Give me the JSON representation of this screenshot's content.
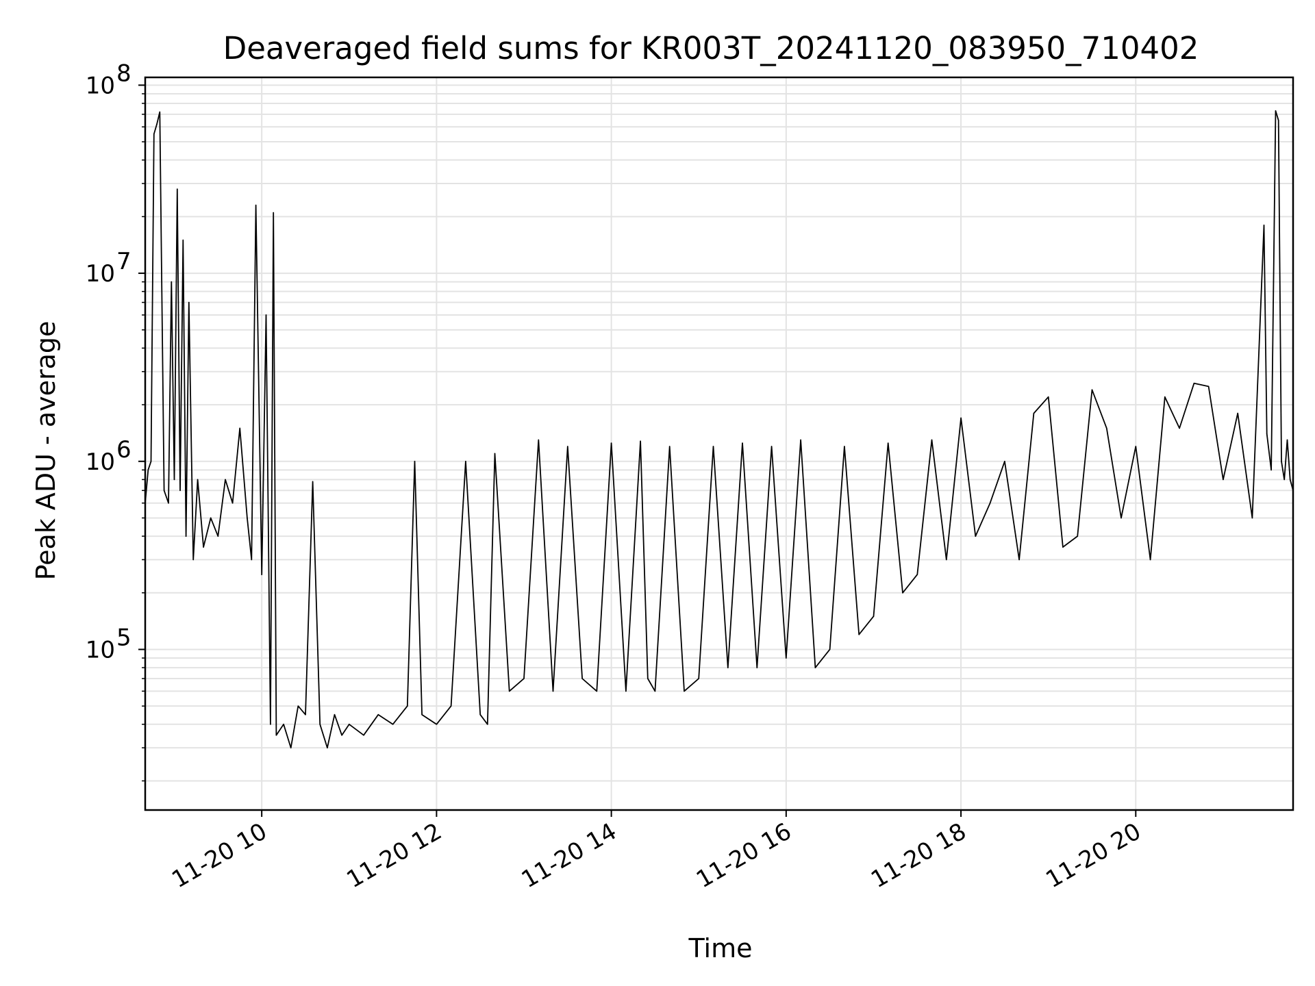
{
  "chart_data": {
    "type": "line",
    "title": "Deaveraged field sums for KR003T_20241120_083950_710402",
    "xlabel": "Time",
    "ylabel": "Peak ADU - average",
    "yscale": "log",
    "ylim": [
      14000,
      110000000
    ],
    "xlim": [
      "2024-11-20 08:40",
      "2024-11-20 21:48"
    ],
    "grid": true,
    "line_color": "#000000",
    "grid_color": "#e3e3e3",
    "x_ticks": [
      {
        "t": "2024-11-20 10:00",
        "label": "11-20 10"
      },
      {
        "t": "2024-11-20 12:00",
        "label": "11-20 12"
      },
      {
        "t": "2024-11-20 14:00",
        "label": "11-20 14"
      },
      {
        "t": "2024-11-20 16:00",
        "label": "11-20 16"
      },
      {
        "t": "2024-11-20 18:00",
        "label": "11-20 18"
      },
      {
        "t": "2024-11-20 20:00",
        "label": "11-20 20"
      }
    ],
    "y_ticks": [
      {
        "value": 100000,
        "label": "10",
        "exp": "5"
      },
      {
        "value": 1000000,
        "label": "10",
        "exp": "6"
      },
      {
        "value": 10000000,
        "label": "10",
        "exp": "7"
      },
      {
        "value": 100000000,
        "label": "10",
        "exp": "8"
      }
    ],
    "series": [
      {
        "x": [
          "2024-11-20 08:40",
          "2024-11-20 08:42",
          "2024-11-20 08:44",
          "2024-11-20 08:46",
          "2024-11-20 08:48",
          "2024-11-20 08:50",
          "2024-11-20 08:53",
          "2024-11-20 08:56",
          "2024-11-20 08:58",
          "2024-11-20 09:00",
          "2024-11-20 09:02",
          "2024-11-20 09:04",
          "2024-11-20 09:06",
          "2024-11-20 09:08",
          "2024-11-20 09:10",
          "2024-11-20 09:13",
          "2024-11-20 09:16",
          "2024-11-20 09:20",
          "2024-11-20 09:25",
          "2024-11-20 09:30",
          "2024-11-20 09:35",
          "2024-11-20 09:40",
          "2024-11-20 09:45",
          "2024-11-20 09:50",
          "2024-11-20 09:53",
          "2024-11-20 09:56",
          "2024-11-20 10:00",
          "2024-11-20 10:03",
          "2024-11-20 10:06",
          "2024-11-20 10:08",
          "2024-11-20 10:10",
          "2024-11-20 10:15",
          "2024-11-20 10:20",
          "2024-11-20 10:25",
          "2024-11-20 10:30",
          "2024-11-20 10:35",
          "2024-11-20 10:40",
          "2024-11-20 10:45",
          "2024-11-20 10:50",
          "2024-11-20 10:55",
          "2024-11-20 11:00",
          "2024-11-20 11:10",
          "2024-11-20 11:20",
          "2024-11-20 11:30",
          "2024-11-20 11:40",
          "2024-11-20 11:45",
          "2024-11-20 11:50",
          "2024-11-20 12:00",
          "2024-11-20 12:10",
          "2024-11-20 12:20",
          "2024-11-20 12:30",
          "2024-11-20 12:35",
          "2024-11-20 12:40",
          "2024-11-20 12:50",
          "2024-11-20 13:00",
          "2024-11-20 13:10",
          "2024-11-20 13:20",
          "2024-11-20 13:30",
          "2024-11-20 13:40",
          "2024-11-20 13:50",
          "2024-11-20 14:00",
          "2024-11-20 14:10",
          "2024-11-20 14:20",
          "2024-11-20 14:25",
          "2024-11-20 14:30",
          "2024-11-20 14:40",
          "2024-11-20 14:50",
          "2024-11-20 15:00",
          "2024-11-20 15:10",
          "2024-11-20 15:20",
          "2024-11-20 15:30",
          "2024-11-20 15:40",
          "2024-11-20 15:50",
          "2024-11-20 16:00",
          "2024-11-20 16:10",
          "2024-11-20 16:20",
          "2024-11-20 16:30",
          "2024-11-20 16:40",
          "2024-11-20 16:50",
          "2024-11-20 17:00",
          "2024-11-20 17:10",
          "2024-11-20 17:20",
          "2024-11-20 17:30",
          "2024-11-20 17:40",
          "2024-11-20 17:50",
          "2024-11-20 18:00",
          "2024-11-20 18:10",
          "2024-11-20 18:20",
          "2024-11-20 18:30",
          "2024-11-20 18:40",
          "2024-11-20 18:50",
          "2024-11-20 19:00",
          "2024-11-20 19:10",
          "2024-11-20 19:20",
          "2024-11-20 19:30",
          "2024-11-20 19:40",
          "2024-11-20 19:50",
          "2024-11-20 20:00",
          "2024-11-20 20:10",
          "2024-11-20 20:20",
          "2024-11-20 20:30",
          "2024-11-20 20:40",
          "2024-11-20 20:50",
          "2024-11-20 21:00",
          "2024-11-20 21:10",
          "2024-11-20 21:20",
          "2024-11-20 21:28",
          "2024-11-20 21:30",
          "2024-11-20 21:33",
          "2024-11-20 21:36",
          "2024-11-20 21:38",
          "2024-11-20 21:40",
          "2024-11-20 21:42",
          "2024-11-20 21:44",
          "2024-11-20 21:46",
          "2024-11-20 21:48"
        ],
        "y": [
          600000,
          900000,
          1000000,
          55000000,
          62000000,
          72000000,
          700000,
          600000,
          9000000,
          800000,
          28000000,
          700000,
          15000000,
          400000,
          7000000,
          300000,
          800000,
          350000,
          500000,
          400000,
          800000,
          600000,
          1500000,
          500000,
          300000,
          23000000,
          250000,
          6000000,
          40000,
          21000000,
          35000,
          40000,
          30000,
          50000,
          45000,
          780000,
          40000,
          30000,
          45000,
          35000,
          40000,
          35000,
          45000,
          40000,
          50000,
          1000000,
          45000,
          40000,
          50000,
          1000000,
          45000,
          40000,
          1100000,
          60000,
          70000,
          1300000,
          60000,
          1200000,
          70000,
          60000,
          1250000,
          60000,
          1280000,
          70000,
          60000,
          1200000,
          60000,
          70000,
          1200000,
          80000,
          1250000,
          80000,
          1200000,
          90000,
          1300000,
          80000,
          100000,
          1200000,
          120000,
          150000,
          1250000,
          200000,
          250000,
          1300000,
          300000,
          1700000,
          400000,
          600000,
          1000000,
          300000,
          1800000,
          2200000,
          350000,
          400000,
          2400000,
          1500000,
          500000,
          1200000,
          300000,
          2200000,
          1500000,
          2600000,
          2500000,
          800000,
          1800000,
          500000,
          18000000,
          1400000,
          900000,
          73000000,
          65000000,
          1000000,
          800000,
          1300000,
          800000,
          700000
        ]
      }
    ]
  }
}
